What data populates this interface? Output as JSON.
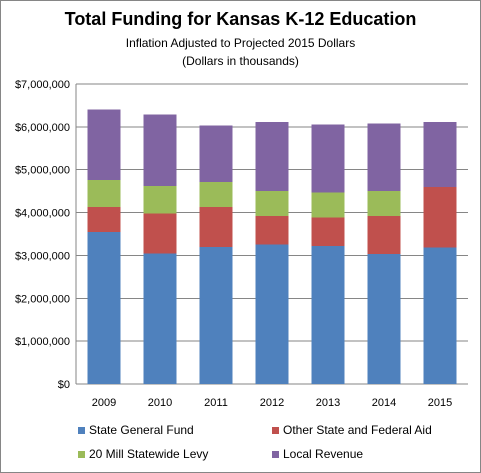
{
  "chart_data": {
    "type": "bar",
    "stacked": true,
    "title": "Total Funding for Kansas K-12 Education",
    "subtitle_lines": [
      "Inflation Adjusted to Projected 2015 Dollars",
      "(Dollars in thousands)"
    ],
    "xlabel": "",
    "ylabel": "",
    "categories": [
      "2009",
      "2010",
      "2011",
      "2012",
      "2013",
      "2014",
      "2015"
    ],
    "ylim": [
      0,
      7000000
    ],
    "yticks": [
      0,
      1000000,
      2000000,
      3000000,
      4000000,
      5000000,
      6000000,
      7000000
    ],
    "ytick_labels": [
      "$0",
      "$1,000,000",
      "$2,000,000",
      "$3,000,000",
      "$4,000,000",
      "$5,000,000",
      "$6,000,000",
      "$7,000,000"
    ],
    "grid": true,
    "legend_position": "bottom",
    "series": [
      {
        "name": "State General Fund",
        "color": "#4f81bd",
        "values": [
          3550000,
          3050000,
          3200000,
          3250000,
          3220000,
          3030000,
          3180000
        ]
      },
      {
        "name": "Other State and Federal Aid",
        "color": "#c0504d",
        "values": [
          580000,
          930000,
          930000,
          670000,
          670000,
          890000,
          1420000
        ]
      },
      {
        "name": "20 Mill Statewide Levy",
        "color": "#9bbb59",
        "values": [
          630000,
          640000,
          580000,
          580000,
          580000,
          580000,
          0
        ]
      },
      {
        "name": "Local Revenue",
        "color": "#8064a2",
        "values": [
          1650000,
          1670000,
          1320000,
          1610000,
          1590000,
          1580000,
          1510000
        ]
      }
    ]
  }
}
